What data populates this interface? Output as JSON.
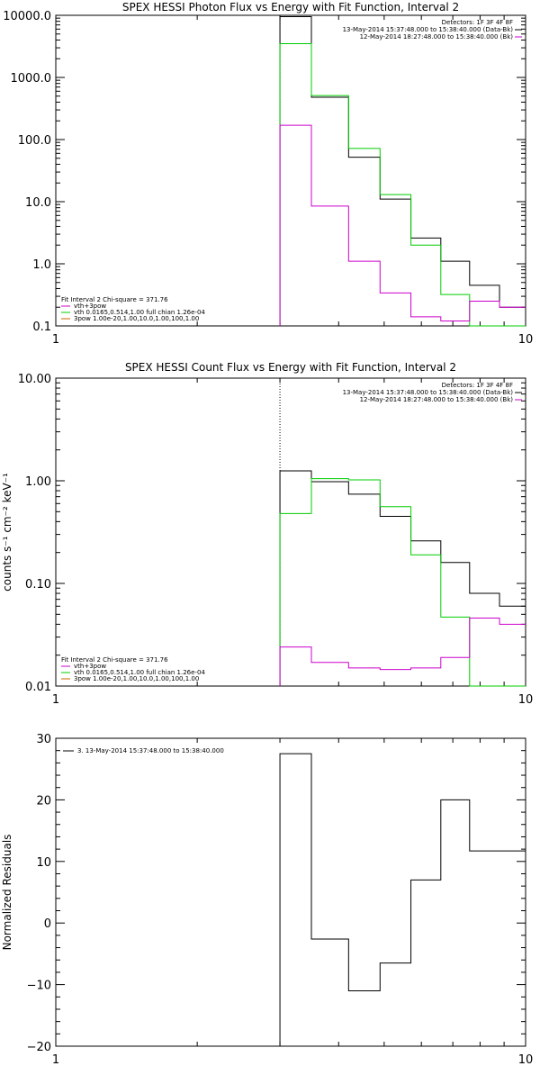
{
  "chart_data": [
    {
      "type": "line",
      "title": "SPEX HESSI Photon Flux vs Energy with Fit Function, Interval 2",
      "xlabel": "",
      "ylabel": "",
      "xscale": "log",
      "yscale": "log",
      "xlim": [
        1,
        10
      ],
      "ylim": [
        0.1,
        10000
      ],
      "grid": false,
      "xticks": [
        "1",
        "10"
      ],
      "yticks": [
        {
          "v": 10000,
          "t": "10000.0"
        },
        {
          "v": 1000,
          "t": "1000.0"
        },
        {
          "v": 100,
          "t": "100.0"
        },
        {
          "v": 10,
          "t": "10.0"
        },
        {
          "v": 1,
          "t": "1.0"
        },
        {
          "v": 0.1,
          "t": "0.1"
        }
      ],
      "vline": {
        "x": 3.0,
        "style": "dotted"
      },
      "legend_top": {
        "placement": "top-right",
        "entries": [
          {
            "text": "Detectors: 1F 3F 4F 8F",
            "color": ""
          },
          {
            "text": "13-May-2014 15:37:48.000 to 15:38:40.000 (Data-Bk)",
            "color": "#000000"
          },
          {
            "text": "12-May-2014 18:27:48.000 to 15:38:40.000 (Bk)",
            "color": "#cc00cc"
          }
        ]
      },
      "legend_bottom": {
        "placement": "bottom-left",
        "entries": [
          {
            "text": "Fit Interval 2   Chi-square = 371.76",
            "color": ""
          },
          {
            "text": "vth+3pow",
            "color": "#cc00cc"
          },
          {
            "text": "vth 0.0165,0.514,1.00  full chian 1.26e-04",
            "color": "#00cc00"
          },
          {
            "text": "3pow 1.00e-20,1.00,10.0,1.00,100,1.00",
            "color": "#cc6600"
          }
        ]
      },
      "series": [
        {
          "color": "#000000",
          "edges": [
            3.0,
            3.5,
            4.2,
            4.9,
            5.7,
            6.6,
            7.6,
            8.8,
            10.0
          ],
          "values": [
            9500,
            480,
            52,
            11,
            2.6,
            1.1,
            0.45,
            0.2
          ]
        },
        {
          "color": "#00cc00",
          "edges": [
            3.0,
            3.5,
            4.2,
            4.9,
            5.7,
            6.6,
            7.6,
            8.8,
            10.0
          ],
          "values": [
            3500,
            510,
            72,
            13,
            2.0,
            0.32,
            0.1,
            0.1
          ]
        },
        {
          "color": "#cc00cc",
          "edges": [
            3.0,
            3.5,
            4.2,
            4.9,
            5.7,
            6.6,
            7.6,
            8.8,
            10.0
          ],
          "values": [
            170,
            8.5,
            1.1,
            0.34,
            0.14,
            0.12,
            0.25,
            0.2
          ]
        }
      ]
    },
    {
      "type": "line",
      "title": "SPEX HESSI Count Flux vs Energy with Fit Function, Interval 2",
      "xlabel": "",
      "ylabel": "counts s⁻¹ cm⁻² keV⁻¹",
      "xscale": "log",
      "yscale": "log",
      "xlim": [
        1,
        10
      ],
      "ylim": [
        0.01,
        10
      ],
      "grid": false,
      "xticks": [
        "1",
        "10"
      ],
      "yticks": [
        {
          "v": 10,
          "t": "10.00"
        },
        {
          "v": 1,
          "t": "1.00"
        },
        {
          "v": 0.1,
          "t": "0.10"
        },
        {
          "v": 0.01,
          "t": "0.01"
        }
      ],
      "vline": {
        "x": 3.0,
        "style": "dotted"
      },
      "legend_top": {
        "placement": "top-right",
        "entries": [
          {
            "text": "Detectors: 1F 3F 4F 8F",
            "color": ""
          },
          {
            "text": "13-May-2014 15:37:48.000 to 15:38:40.000 (Data-Bk)",
            "color": "#000000"
          },
          {
            "text": "12-May-2014 18:27:48.000 to 15:38:40.000 (Bk)",
            "color": "#cc00cc"
          }
        ]
      },
      "legend_bottom": {
        "placement": "bottom-left",
        "entries": [
          {
            "text": "Fit Interval 2   Chi-square = 371.76",
            "color": ""
          },
          {
            "text": "vth+3pow",
            "color": "#cc00cc"
          },
          {
            "text": "vth 0.0165,0.514,1.00  full chian 1.26e-04",
            "color": "#00cc00"
          },
          {
            "text": "3pow 1.00e-20,1.00,10.0,1.00,100,1.00",
            "color": "#cc6600"
          }
        ]
      },
      "series": [
        {
          "color": "#000000",
          "edges": [
            3.0,
            3.5,
            4.2,
            4.9,
            5.7,
            6.6,
            7.6,
            8.8,
            10.0
          ],
          "values": [
            1.25,
            0.98,
            0.74,
            0.45,
            0.26,
            0.16,
            0.08,
            0.06
          ]
        },
        {
          "color": "#00cc00",
          "edges": [
            3.0,
            3.5,
            4.2,
            4.9,
            5.7,
            6.6,
            7.6,
            8.8,
            10.0
          ],
          "values": [
            0.48,
            1.05,
            1.02,
            0.56,
            0.19,
            0.047,
            0.01,
            0.01
          ]
        },
        {
          "color": "#cc00cc",
          "edges": [
            3.0,
            3.5,
            4.2,
            4.9,
            5.7,
            6.6,
            7.6,
            8.8,
            10.0
          ],
          "values": [
            0.024,
            0.017,
            0.015,
            0.0145,
            0.015,
            0.019,
            0.046,
            0.04
          ]
        }
      ]
    },
    {
      "type": "line",
      "title": "",
      "xlabel": "",
      "ylabel": "Normalized Residuals",
      "xscale": "log",
      "yscale": "linear",
      "xlim": [
        1,
        10
      ],
      "ylim": [
        -20,
        30
      ],
      "grid": false,
      "xticks": [
        "1",
        "10"
      ],
      "yticks": [
        {
          "v": 30,
          "t": "30"
        },
        {
          "v": 20,
          "t": "20"
        },
        {
          "v": 10,
          "t": "10"
        },
        {
          "v": 0,
          "t": "0"
        },
        {
          "v": -10,
          "t": "−10"
        },
        {
          "v": -20,
          "t": "−20"
        }
      ],
      "legend_top": {
        "placement": "top-left",
        "entries": [
          {
            "text": "3. 13-May-2014 15:37:48.000 to 15:38:40.000",
            "color": "#000000"
          }
        ]
      },
      "series": [
        {
          "color": "#000000",
          "edges": [
            3.0,
            3.5,
            4.2,
            4.9,
            5.7,
            6.6,
            7.6,
            8.8,
            10.0
          ],
          "values": [
            27.5,
            -2.6,
            -11.0,
            -6.5,
            7.0,
            20.0,
            11.7,
            11.7
          ]
        }
      ]
    }
  ]
}
